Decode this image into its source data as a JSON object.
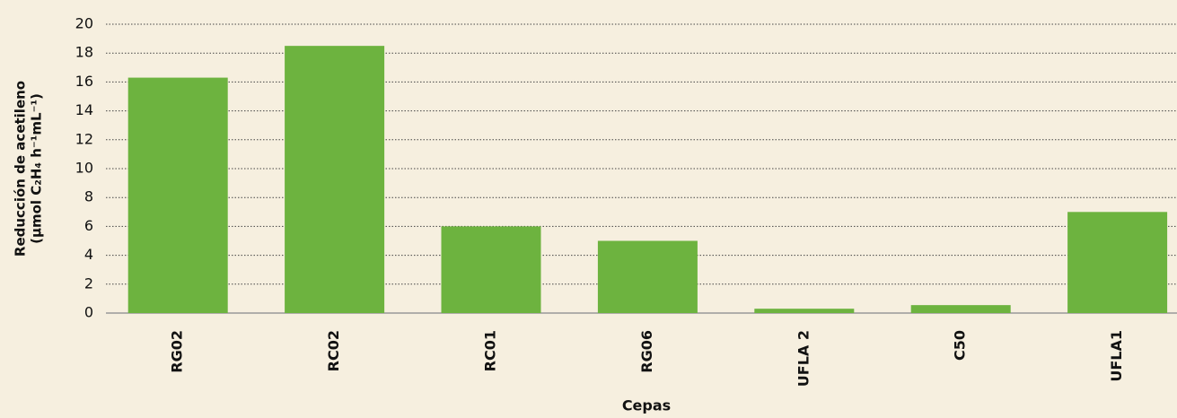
{
  "chart_data": {
    "type": "bar",
    "ylabel": [
      "Reducción de acetileno",
      "(µmol C₂H₄ h⁻¹mL⁻¹)"
    ],
    "xlabel": "Cepas",
    "categories": [
      "RG02",
      "RC02",
      "RC01",
      "RG06",
      "UFLA 2",
      "C50",
      "UFLA1"
    ],
    "values": [
      16.3,
      18.5,
      6.0,
      5.0,
      0.3,
      0.55,
      7.0
    ],
    "color": "#6db33f",
    "ylim": [
      0,
      20
    ],
    "yticks": [
      0,
      2,
      4,
      6,
      8,
      10,
      12,
      14,
      16,
      18,
      20
    ],
    "grid": true
  }
}
